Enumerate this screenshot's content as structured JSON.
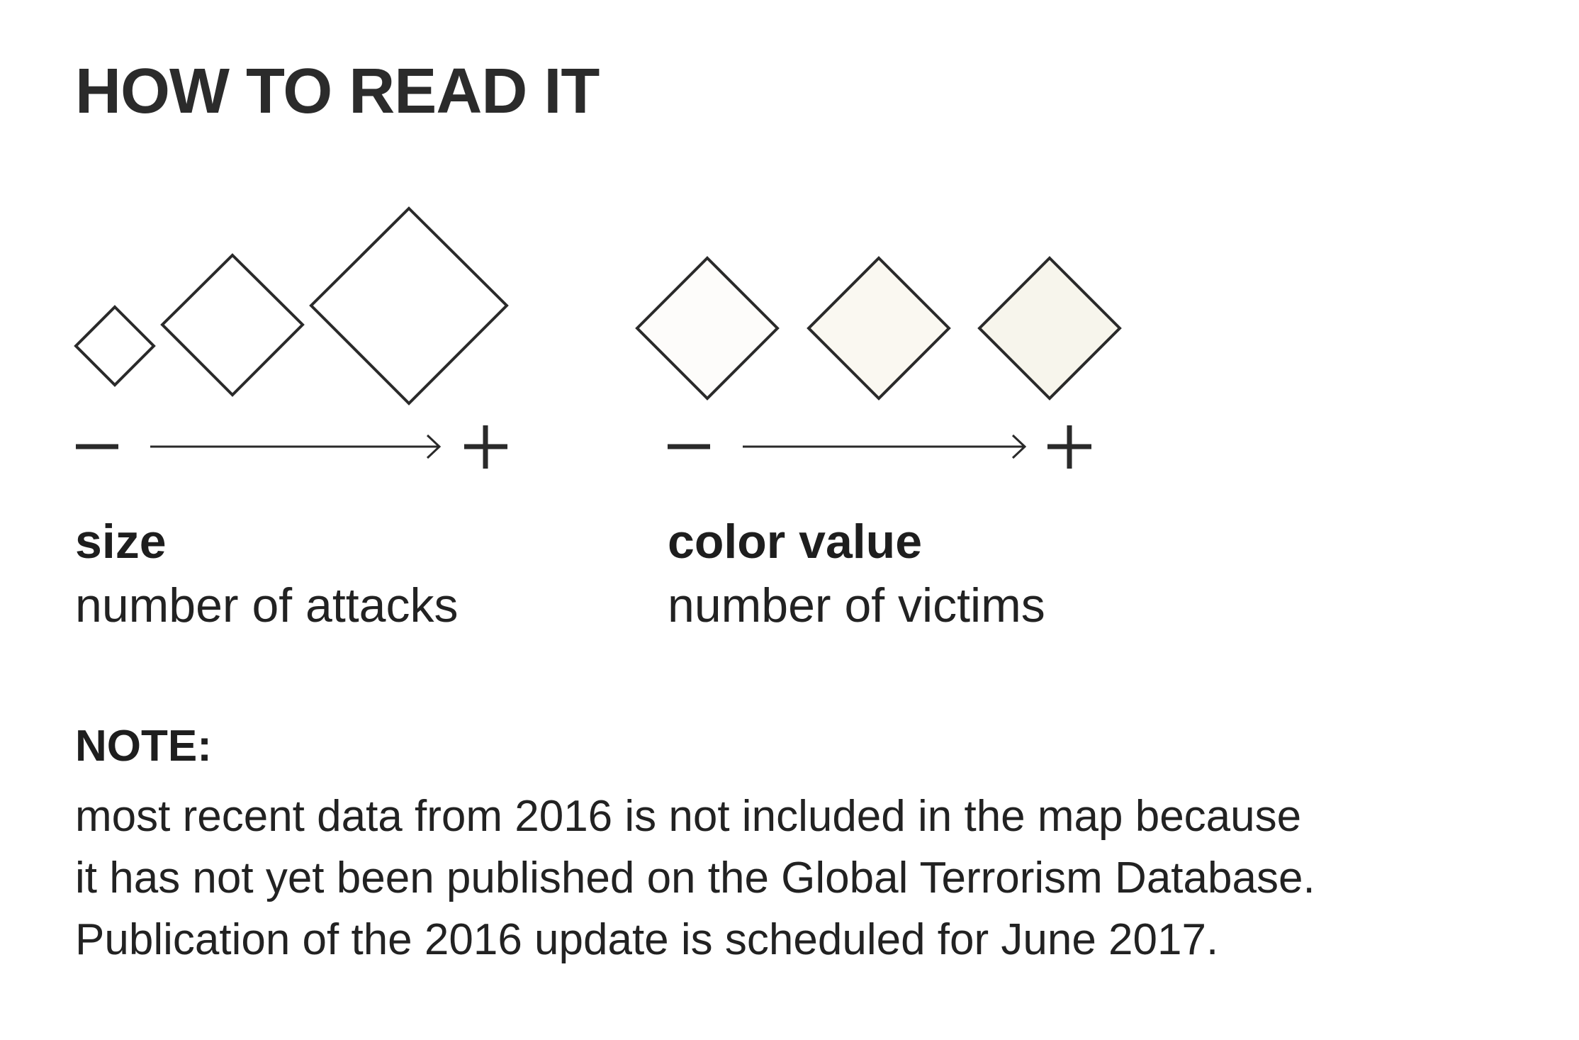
{
  "title": "HOW TO READ IT",
  "legend": {
    "size": {
      "heading": "size",
      "description": "number of attacks",
      "minus": "−",
      "plus": "+",
      "symbol_count": 3
    },
    "color": {
      "heading": "color value",
      "description": "number of victims",
      "minus": "−",
      "plus": "+",
      "fills": [
        "#fdfcfa",
        "#faf8f1",
        "#f7f5ec"
      ]
    },
    "stroke_color": "#2a2a2a"
  },
  "note": {
    "heading": "NOTE:",
    "lines": [
      "most recent data from 2016 is not included in the map because",
      "it has not yet been published on the Global Terrorism Database.",
      "Publication of the 2016 update is scheduled for June 2017."
    ]
  }
}
